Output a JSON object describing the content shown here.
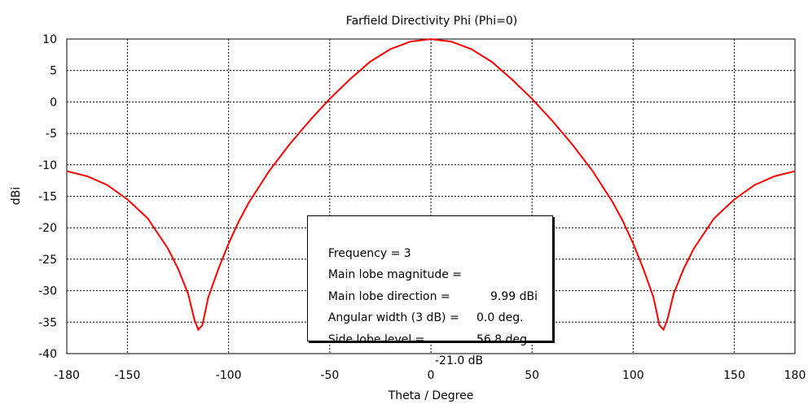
{
  "chart_data": {
    "type": "line",
    "title": "Farfield Directivity Phi (Phi=0)",
    "xlabel": "Theta / Degree",
    "ylabel": "dBi",
    "xlim": [
      -180,
      180
    ],
    "ylim": [
      -40,
      10
    ],
    "xticks": [
      -180,
      -150,
      -100,
      -50,
      0,
      50,
      100,
      150,
      180
    ],
    "yticks": [
      10,
      5,
      0,
      -5,
      -10,
      -15,
      -20,
      -25,
      -30,
      -35,
      -40
    ],
    "grid": true,
    "grid_style": "dotted",
    "series": [
      {
        "color": "#ff0000",
        "x": [
          -180,
          -170,
          -160,
          -150,
          -140,
          -130,
          -125,
          -120,
          -117,
          -115,
          -113,
          -110,
          -105,
          -100,
          -95,
          -90,
          -80,
          -70,
          -60,
          -50,
          -40,
          -30,
          -20,
          -10,
          0,
          10,
          20,
          30,
          40,
          50,
          60,
          70,
          80,
          90,
          95,
          100,
          105,
          110,
          113,
          115,
          117,
          120,
          125,
          130,
          140,
          150,
          160,
          170,
          180
        ],
        "y": [
          -11.0,
          -11.8,
          -13.2,
          -15.5,
          -18.5,
          -23.3,
          -26.5,
          -30.5,
          -34.5,
          -36.2,
          -35.5,
          -31.0,
          -26.5,
          -22.5,
          -19.0,
          -16.0,
          -11.0,
          -6.8,
          -3.0,
          0.5,
          3.6,
          6.4,
          8.4,
          9.6,
          9.99,
          9.6,
          8.4,
          6.4,
          3.6,
          0.5,
          -3.0,
          -6.8,
          -11.0,
          -16.0,
          -19.0,
          -22.5,
          -26.5,
          -31.0,
          -35.5,
          -36.2,
          -34.5,
          -30.5,
          -26.5,
          -23.3,
          -18.5,
          -15.5,
          -13.2,
          -11.8,
          -11.0
        ]
      }
    ],
    "info_box": {
      "lines": [
        {
          "label": "Frequency = 3",
          "value": ""
        },
        {
          "label": "Main lobe magnitude =",
          "value": "9.99 dBi"
        },
        {
          "label": "Main lobe direction =",
          "value": "0.0 deg."
        },
        {
          "label": "Angular width (3 dB) =",
          "value": "56.8 deg."
        },
        {
          "label": "Side lobe level =",
          "value": "-21.0 dB"
        }
      ]
    }
  }
}
